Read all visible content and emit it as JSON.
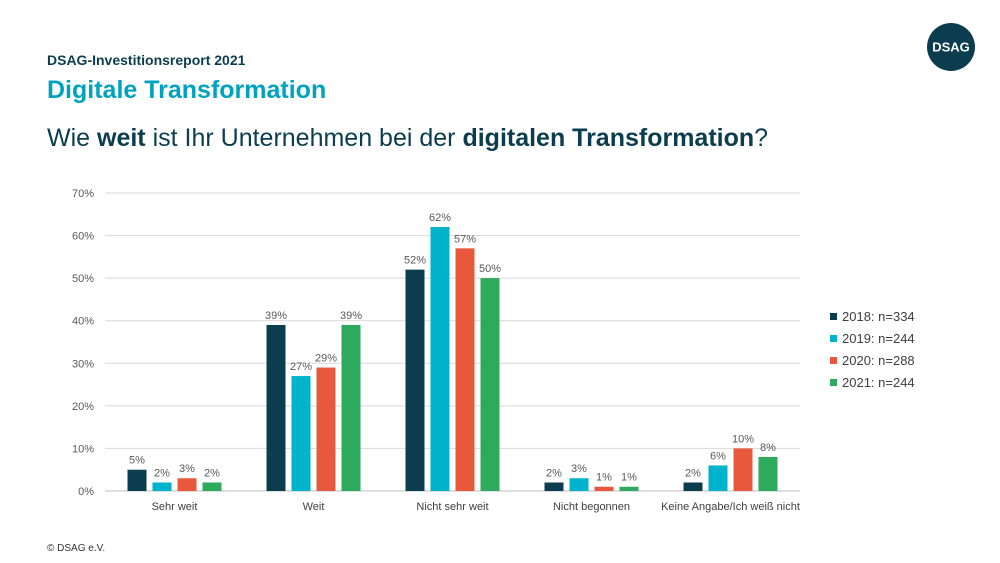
{
  "header": {
    "report": "DSAG-Investitionsreport 2021",
    "section": "Digitale Transformation",
    "question_parts": [
      {
        "text": "Wie ",
        "bold": false
      },
      {
        "text": "weit",
        "bold": true
      },
      {
        "text": " ist Ihr Unternehmen bei der ",
        "bold": false
      },
      {
        "text": "digitalen Transformation",
        "bold": true
      },
      {
        "text": "?",
        "bold": false
      }
    ]
  },
  "logo": {
    "text": "DSAG",
    "color": "#0b3d4f"
  },
  "footer": {
    "copyright": "© DSAG e.V."
  },
  "chart_data": {
    "type": "bar",
    "title": "",
    "xlabel": "",
    "ylabel": "",
    "ylim": [
      0,
      70
    ],
    "yticks": [
      0,
      10,
      20,
      30,
      40,
      50,
      60,
      70
    ],
    "ytick_labels": [
      "0%",
      "10%",
      "20%",
      "30%",
      "40%",
      "50%",
      "60%",
      "70%"
    ],
    "grid": true,
    "legend_position": "right",
    "categories": [
      "Sehr weit",
      "Weit",
      "Nicht sehr weit",
      "Nicht begonnen",
      "Keine Angabe/Ich weiß nicht"
    ],
    "series": [
      {
        "name": "2018: n=334",
        "color": "#0b3d4f",
        "values": [
          5,
          39,
          52,
          2,
          2
        ],
        "labels": [
          "5%",
          "39%",
          "52%",
          "2%",
          "2%"
        ]
      },
      {
        "name": "2019: n=244",
        "color": "#00b3cc",
        "values": [
          2,
          27,
          62,
          3,
          6
        ],
        "labels": [
          "2%",
          "27%",
          "62%",
          "3%",
          "6%"
        ]
      },
      {
        "name": "2020: n=288",
        "color": "#e8583d",
        "values": [
          3,
          29,
          57,
          1,
          10
        ],
        "labels": [
          "3%",
          "29%",
          "57%",
          "1%",
          "10%"
        ]
      },
      {
        "name": "2021: n=244",
        "color": "#2eaa5c",
        "values": [
          2,
          39,
          50,
          1,
          8
        ],
        "labels": [
          "2%",
          "39%",
          "50%",
          "1%",
          "8%"
        ]
      }
    ]
  }
}
